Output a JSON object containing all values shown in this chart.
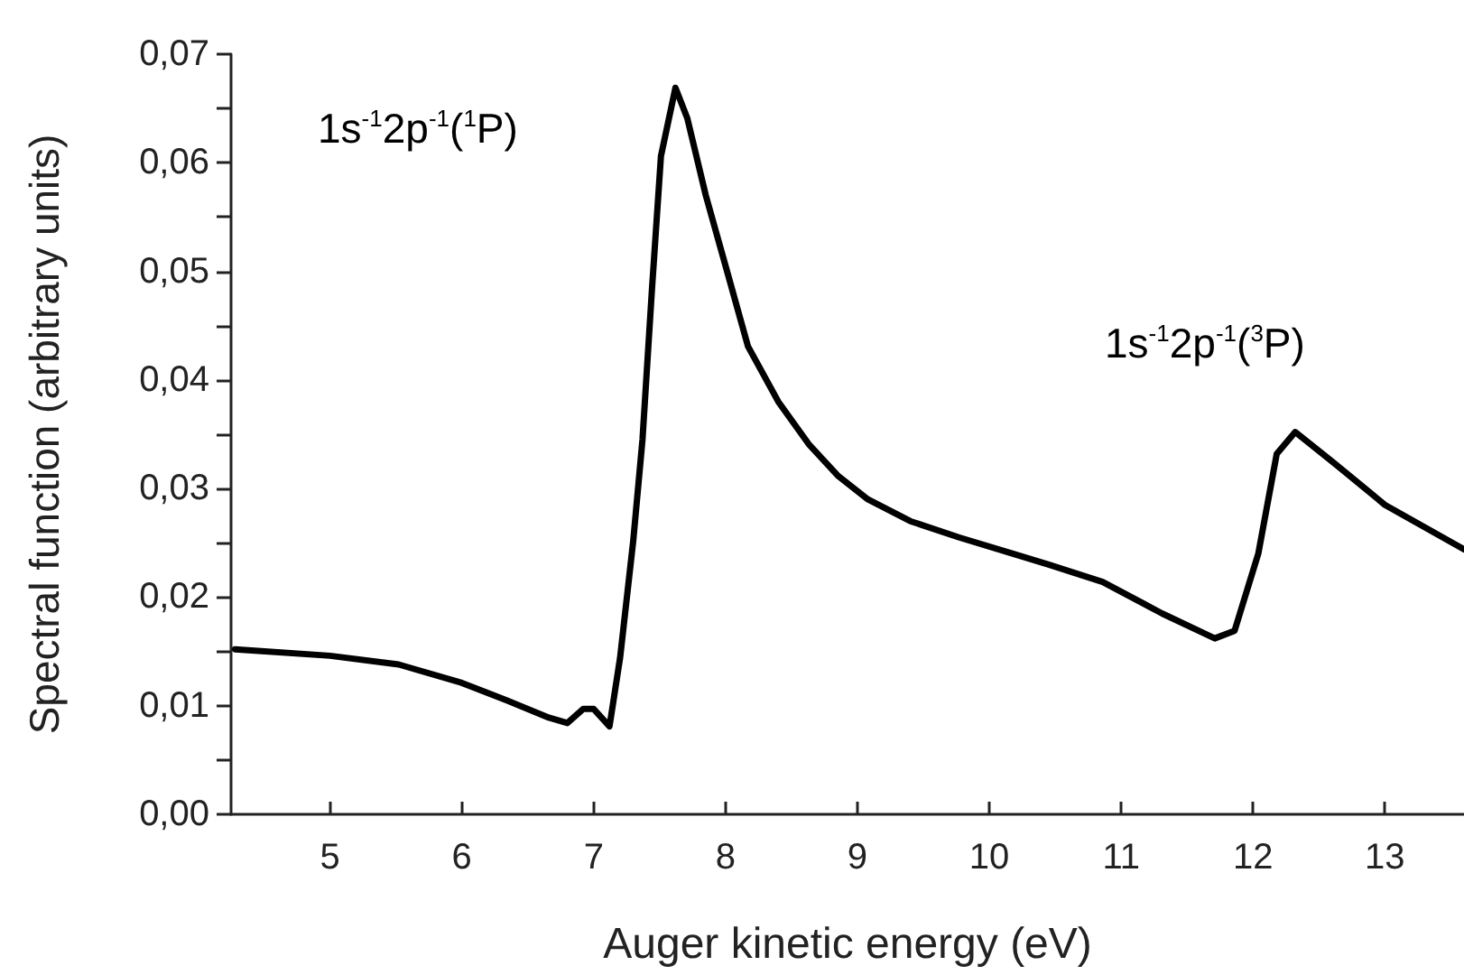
{
  "chart_data": {
    "type": "line",
    "xlabel": "Auger kinetic energy (eV)",
    "ylabel": "Spectral function (arbitrary units)",
    "series": [
      {
        "color": "#000000",
        "x": [
          4.28,
          5.0,
          5.52,
          6.0,
          6.34,
          6.66,
          6.8,
          6.92,
          7.0,
          7.12,
          7.2,
          7.3,
          7.37,
          7.44,
          7.51,
          7.62,
          7.71,
          7.85,
          8.0,
          8.17,
          8.4,
          8.63,
          8.85,
          9.08,
          9.4,
          9.77,
          10.18,
          10.45,
          10.86,
          11.31,
          11.71,
          11.86,
          12.04,
          12.18,
          12.32,
          12.63,
          13.0,
          13.6
        ],
        "values": [
          0.0152,
          0.0146,
          0.0138,
          0.0121,
          0.0105,
          0.0089,
          0.0084,
          0.0097,
          0.0097,
          0.0081,
          0.0144,
          0.0252,
          0.0345,
          0.048,
          0.0606,
          0.0669,
          0.0641,
          0.057,
          0.0505,
          0.0431,
          0.038,
          0.0341,
          0.0312,
          0.029,
          0.027,
          0.0255,
          0.024,
          0.023,
          0.0214,
          0.0185,
          0.0162,
          0.0169,
          0.024,
          0.0332,
          0.0352,
          0.0322,
          0.0285,
          0.0244
        ]
      }
    ],
    "xlim": [
      4.25,
      13.6
    ],
    "xticks": [
      5,
      6,
      7,
      8,
      9,
      10,
      11,
      12,
      13
    ],
    "ylim": [
      0,
      0.07
    ],
    "yticks": [
      {
        "value": 0,
        "label": "0,00"
      },
      {
        "value": 0.005,
        "label": null
      },
      {
        "value": 0.01,
        "label": "0,01"
      },
      {
        "value": 0.015,
        "label": null
      },
      {
        "value": 0.02,
        "label": "0,02"
      },
      {
        "value": 0.025,
        "label": null
      },
      {
        "value": 0.03,
        "label": "0,03"
      },
      {
        "value": 0.035,
        "label": null
      },
      {
        "value": 0.04,
        "label": "0,04"
      },
      {
        "value": 0.045,
        "label": null
      },
      {
        "value": 0.05,
        "label": "0,05"
      },
      {
        "value": 0.055,
        "label": null
      },
      {
        "value": 0.06,
        "label": "0,06"
      },
      {
        "value": 0.065,
        "label": null
      },
      {
        "value": 0.07,
        "label": "0,07"
      }
    ],
    "annotations": [
      "1s$^{-1}$2p$^{-1}$($^{1}$P)",
      "1s$^{-1}$2p$^{-1}$($^{3}$P)"
    ],
    "grid": false,
    "marker": "none",
    "line_style": "solid"
  }
}
